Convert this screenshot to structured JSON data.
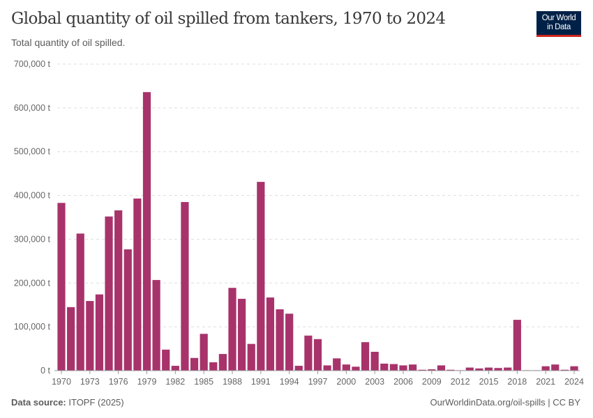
{
  "header": {
    "title": "Global quantity of oil spilled from tankers, 1970 to 2024",
    "subtitle": "Total quantity of oil spilled.",
    "logo_line1": "Our World",
    "logo_line2": "in Data"
  },
  "footer": {
    "source_label": "Data source:",
    "source": "ITOPF (2025)",
    "link": "OurWorldinData.org/oil-spills | CC BY"
  },
  "chart_data": {
    "type": "bar",
    "title": "Global quantity of oil spilled from tankers, 1970 to 2024",
    "unit": "t",
    "color": "#a8336b",
    "ylim": [
      0,
      700000
    ],
    "grid": true,
    "y_ticks": [
      0,
      100000,
      200000,
      300000,
      400000,
      500000,
      600000,
      700000
    ],
    "y_tick_labels": [
      "0 t",
      "100,000 t",
      "200,000 t",
      "300,000 t",
      "400,000 t",
      "500,000 t",
      "600,000 t",
      "700,000 t"
    ],
    "x_tick_labels": [
      "1970",
      "1973",
      "1976",
      "1979",
      "1982",
      "1985",
      "1988",
      "1991",
      "1994",
      "1997",
      "2000",
      "2003",
      "2006",
      "2009",
      "2012",
      "2015",
      "2018",
      "2021",
      "2024"
    ],
    "categories": [
      1970,
      1971,
      1972,
      1973,
      1974,
      1975,
      1976,
      1977,
      1978,
      1979,
      1980,
      1981,
      1982,
      1983,
      1984,
      1985,
      1986,
      1987,
      1988,
      1989,
      1990,
      1991,
      1992,
      1993,
      1994,
      1995,
      1996,
      1997,
      1998,
      1999,
      2000,
      2001,
      2002,
      2003,
      2004,
      2005,
      2006,
      2007,
      2008,
      2009,
      2010,
      2011,
      2012,
      2013,
      2014,
      2015,
      2016,
      2017,
      2018,
      2019,
      2020,
      2021,
      2022,
      2023,
      2024
    ],
    "values": [
      383000,
      145000,
      313000,
      159000,
      174000,
      352000,
      366000,
      277000,
      393000,
      636000,
      207000,
      48000,
      11000,
      385000,
      29000,
      84000,
      19000,
      38000,
      189000,
      164000,
      61000,
      431000,
      167000,
      140000,
      130000,
      11000,
      80000,
      72000,
      12000,
      28000,
      14000,
      9000,
      65000,
      43000,
      16000,
      15000,
      12000,
      14000,
      2000,
      3000,
      12000,
      2000,
      1000,
      7000,
      5000,
      7000,
      6000,
      7000,
      116000,
      1000,
      1000,
      10000,
      14000,
      2000,
      10000
    ]
  }
}
